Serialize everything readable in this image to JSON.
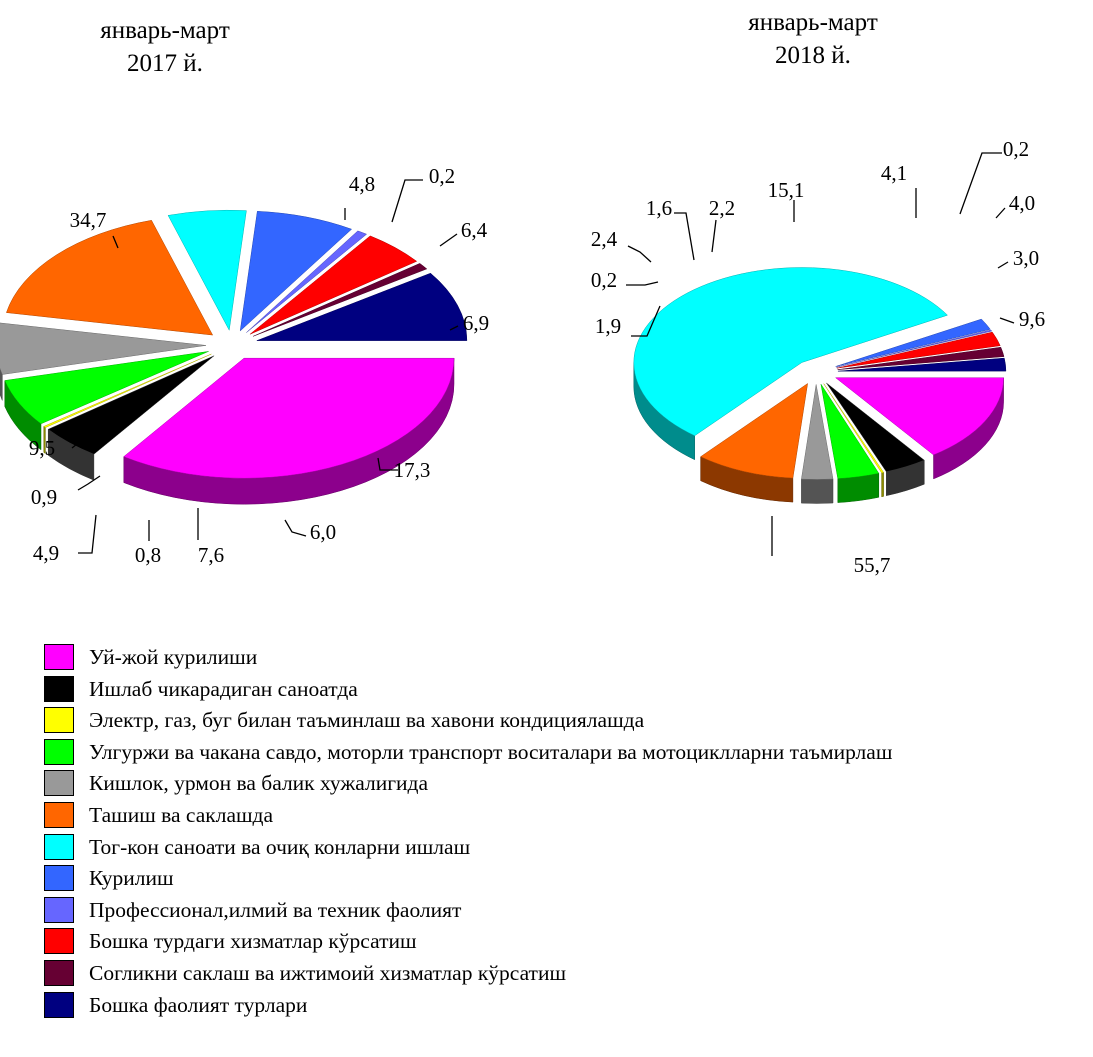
{
  "categories": [
    "Уй-жой курилиши",
    "Ишлаб чикарадиган саноатда",
    "Электр, газ, буг билан таъминлаш ва хавони кондициялашда",
    "Улгуржи ва чакана савдо, моторли транспорт воситалари ва мотоциклларни таъмирлаш",
    "Кишлок, урмон ва балик хужалигида",
    "Ташиш ва саклашда",
    "Тог-кон саноати ва очиқ конларни ишлаш",
    "Курилиш",
    "Профессионал,илмий ва техник фаолият",
    "Бошка турдаги хизматлар кўрсатиш",
    "Согликни саклаш ва ижтимоий хизматлар кўрсатиш",
    "Бошка фаолият турлари"
  ],
  "colors": [
    "#ff00ff",
    "#000000",
    "#ffff00",
    "#00ff00",
    "#999999",
    "#ff6600",
    "#00ffff",
    "#3366ff",
    "#6666ff",
    "#ff0000",
    "#660033",
    "#000080"
  ],
  "chart_data": [
    {
      "type": "pie",
      "title_line1": "январь-март",
      "title_line2": "2017 й.",
      "categories": [
        "Уй-жой курилиши",
        "Ишлаб чикарадиган саноатда",
        "Электр, газ, буг билан таъминлаш ва хавони кондициялашда",
        "Улгуржи ва чакана савдо, моторли транспорт воситалари ва мотоциклларни таъмирлаш",
        "Кишлок, урмон ва балик хужалигида",
        "Ташиш ва саклашда",
        "Тог-кон саноати ва очиқ конларни ишлаш",
        "Курилиш",
        "Профессионал,илмий ва техник фаолият",
        "Бошка турдаги хизматлар кўрсатиш",
        "Согликни саклаш ва ижтимоий хизматлар кўрсатиш",
        "Бошка фаолият турлари"
      ],
      "values": [
        34.7,
        4.8,
        0.2,
        6.4,
        6.9,
        17.3,
        6.0,
        7.6,
        0.8,
        4.9,
        0.9,
        9.5
      ],
      "labels": [
        "34,7",
        "4,8",
        "0,2",
        "6,4",
        "6,9",
        "17,3",
        "6,0",
        "7,6",
        "0,8",
        "4,9",
        "0,9",
        "9,5"
      ]
    },
    {
      "type": "pie",
      "title_line1": "январь-март",
      "title_line2": "2018 й.",
      "categories": [
        "Уй-жой курилиши",
        "Ишлаб чикарадиган саноатда",
        "Электр, газ, буг билан таъминлаш ва хавони кондициялашда",
        "Улгуржи ва чакана савдо, моторли транспорт воситалари ва мотоциклларни таъмирлаш",
        "Кишлок, урмон ва балик хужалигида",
        "Ташиш ва саклашда",
        "Тог-кон саноати ва очиқ конларни ишлаш",
        "Курилиш",
        "Профессионал,илмий ва техник фаолият",
        "Бошка турдаги хизматлар кўрсатиш",
        "Согликни саклаш ва ижтимоий хизматлар кўрсатиш",
        "Бошка фаолият турлари"
      ],
      "values": [
        15.1,
        4.1,
        0.2,
        4.0,
        3.0,
        9.6,
        55.7,
        1.9,
        0.2,
        2.4,
        1.6,
        2.2
      ],
      "labels": [
        "15,1",
        "4,1",
        "0,2",
        "4,0",
        "3,0",
        "9,6",
        "55,7",
        "1,9",
        "0,2",
        "2,4",
        "1,6",
        "2,2"
      ]
    }
  ]
}
